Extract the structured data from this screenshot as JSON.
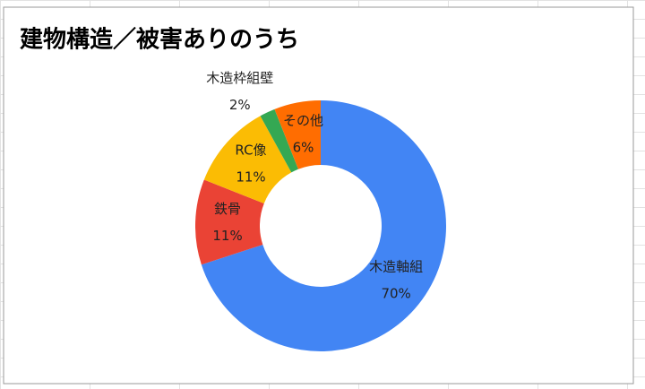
{
  "chart_data": {
    "type": "donut",
    "title": "建物構造／被害ありのうち",
    "categories": [
      "木造軸組",
      "鉄骨",
      "RC像",
      "木造枠組壁",
      "その他"
    ],
    "values": [
      70,
      11,
      11,
      2,
      6
    ],
    "value_labels": [
      "70%",
      "11%",
      "11%",
      "2%",
      "6%"
    ],
    "colors": [
      "#4285f4",
      "#ea4335",
      "#fbbc04",
      "#34a853",
      "#ff6d01"
    ]
  }
}
